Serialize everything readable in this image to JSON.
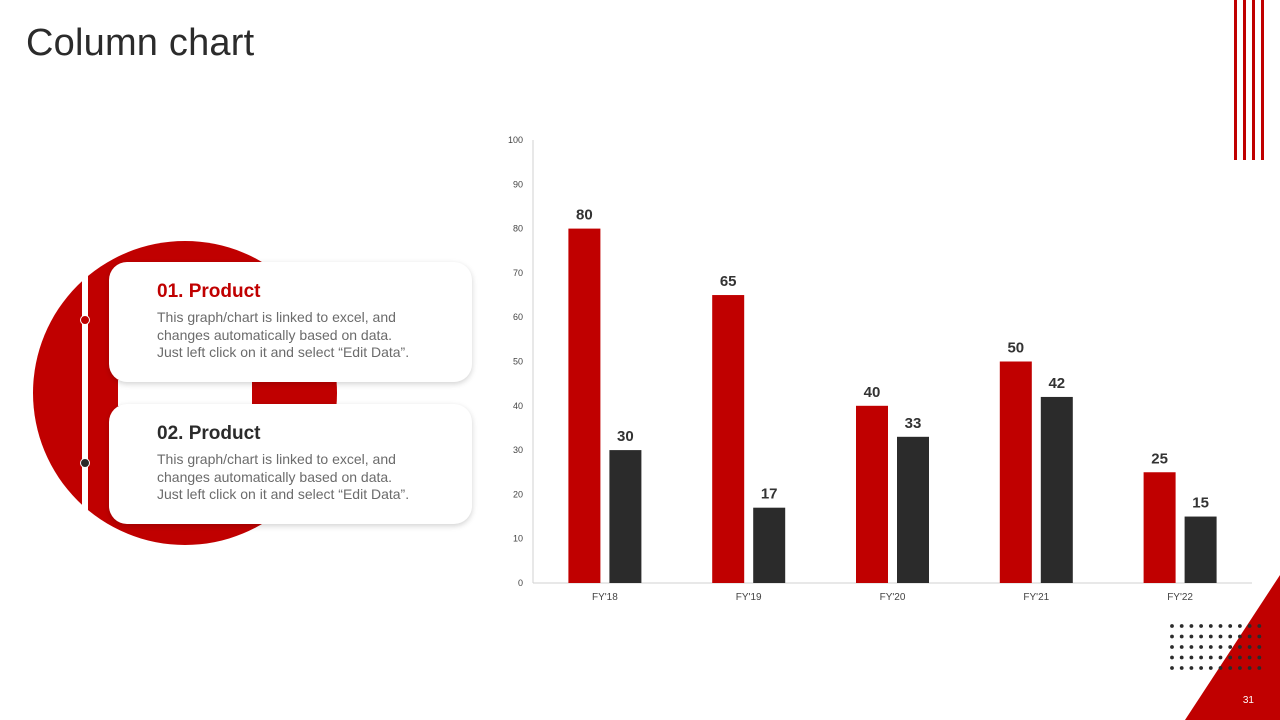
{
  "slide": {
    "title": "Column chart",
    "page_number": "31"
  },
  "cards": [
    {
      "title": "01. Product",
      "text_lines": [
        "This graph/chart is linked to excel, and",
        "changes automatically based on data.",
        "Just left click on it and select “Edit Data”."
      ],
      "title_color": "#c00000"
    },
    {
      "title": "02. Product",
      "text_lines": [
        "This graph/chart is linked to excel, and",
        "changes automatically based on data.",
        "Just left click on it and select “Edit Data”."
      ],
      "title_color": "#2b2b2b"
    }
  ],
  "colors": {
    "accent": "#c00000",
    "dark": "#2b2b2b"
  },
  "chart_data": {
    "type": "bar",
    "categories": [
      "FY'18",
      "FY'19",
      "FY'20",
      "FY'21",
      "FY'22"
    ],
    "series": [
      {
        "values": [
          80,
          65,
          40,
          50,
          25
        ],
        "color": "#c00000"
      },
      {
        "values": [
          30,
          17,
          33,
          42,
          15
        ],
        "color": "#2b2b2b"
      }
    ],
    "ylim": [
      0,
      100
    ],
    "yticks": [
      0,
      10,
      20,
      30,
      40,
      50,
      60,
      70,
      80,
      90,
      100
    ],
    "grid": false,
    "data_labels": true
  }
}
